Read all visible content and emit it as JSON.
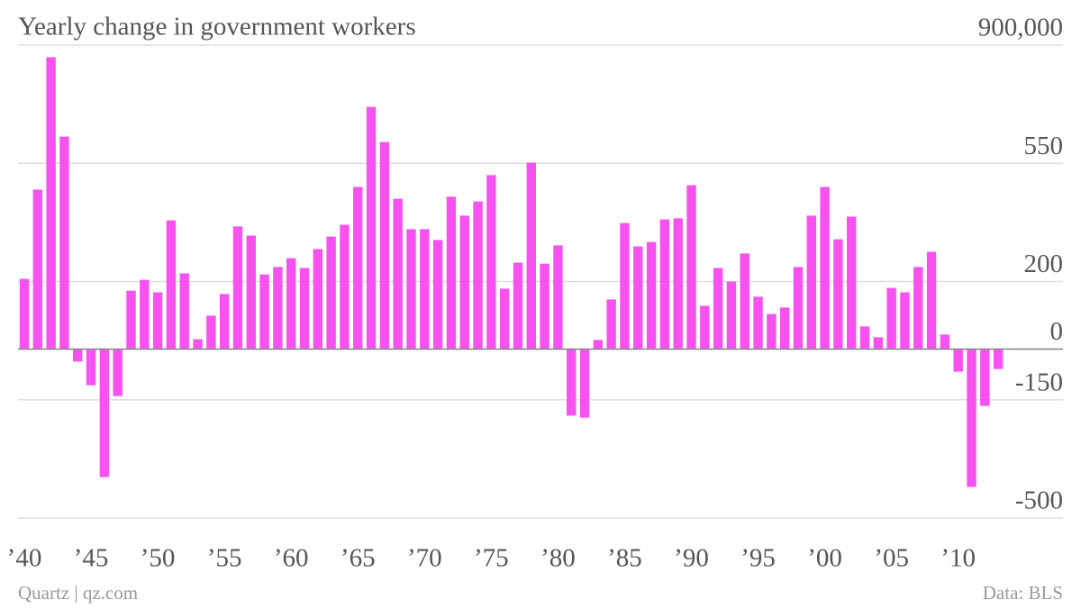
{
  "chart_data": {
    "type": "bar",
    "title": "Yearly change in government workers",
    "source": "Data: BLS",
    "credit": "Quartz | qz.com",
    "color": "#f752ef",
    "categories": [
      "’40",
      null,
      null,
      null,
      null,
      "’45",
      null,
      null,
      null,
      null,
      "’50",
      null,
      null,
      null,
      null,
      "’55",
      null,
      null,
      null,
      null,
      "’60",
      null,
      null,
      null,
      null,
      "’65",
      null,
      null,
      null,
      null,
      "’70",
      null,
      null,
      null,
      null,
      "’75",
      null,
      null,
      null,
      null,
      "’80",
      null,
      null,
      null,
      null,
      "’85",
      null,
      null,
      null,
      null,
      "’90",
      null,
      null,
      null,
      null,
      "’95",
      null,
      null,
      null,
      null,
      "’00",
      null,
      null,
      null,
      null,
      "’05",
      null,
      null,
      null,
      null,
      "’10",
      null,
      null,
      null
    ],
    "values": [
      208,
      472,
      864,
      629,
      -37,
      -107,
      -379,
      -139,
      173,
      205,
      168,
      381,
      224,
      29,
      99,
      163,
      363,
      336,
      221,
      243,
      269,
      240,
      296,
      333,
      368,
      480,
      717,
      613,
      445,
      355,
      355,
      323,
      451,
      395,
      437,
      515,
      179,
      256,
      552,
      253,
      307,
      -197,
      -203,
      27,
      147,
      373,
      304,
      317,
      384,
      387,
      485,
      128,
      240,
      200,
      283,
      155,
      104,
      123,
      243,
      395,
      480,
      325,
      392,
      67,
      35,
      181,
      168,
      243,
      288,
      43,
      -67,
      -408,
      -168,
      -59
    ],
    "ylim": [
      -500,
      900
    ],
    "yticks": [
      {
        "value": 900,
        "label": "900,000"
      },
      550,
      200,
      0,
      -150,
      -500
    ],
    "grid": true
  }
}
